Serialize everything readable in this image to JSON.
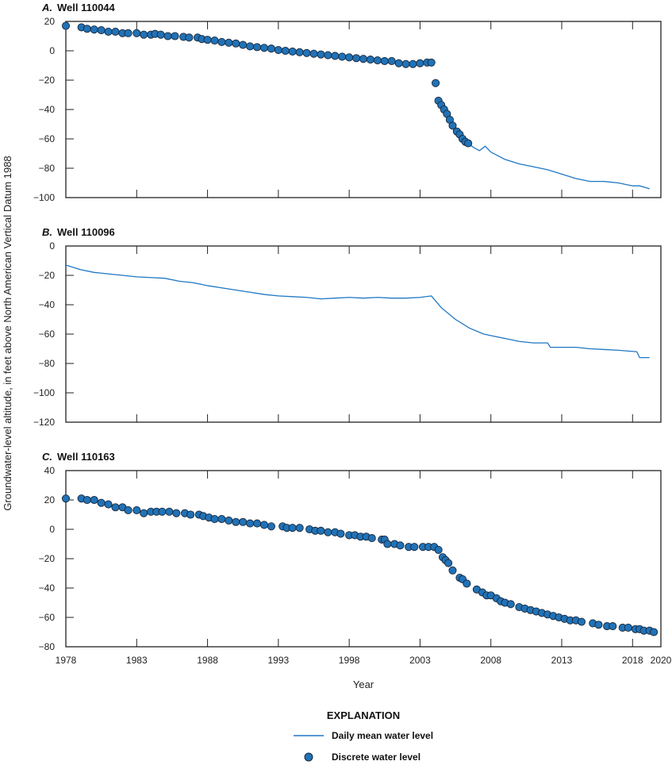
{
  "colors": {
    "line": "#1f77c4",
    "point_fill": "#2172b6",
    "point_stroke": "#17283d"
  },
  "ylabel": "Groundwater-level altitude, in feet above North American Vertical Datum 1988",
  "xlabel": "Year",
  "xlim": [
    1978,
    2020
  ],
  "xticks": [
    1978,
    1983,
    1988,
    1993,
    1998,
    2003,
    2008,
    2013,
    2018,
    2020
  ],
  "legend": {
    "title": "EXPLANATION",
    "line_label": "Daily mean water level",
    "point_label": "Discrete water level"
  },
  "chart_data": [
    {
      "type": "scatter+line",
      "title_letter": "A.",
      "title": "Well 110044",
      "ylim": [
        -100,
        20
      ],
      "yticks": [
        20,
        0,
        -20,
        -40,
        -60,
        -80,
        -100
      ],
      "points": [
        [
          1978,
          17
        ],
        [
          1979.1,
          16
        ],
        [
          1979.5,
          15
        ],
        [
          1980,
          14.5
        ],
        [
          1980.5,
          14
        ],
        [
          1981,
          13
        ],
        [
          1981.5,
          13
        ],
        [
          1982,
          12
        ],
        [
          1982.4,
          12
        ],
        [
          1983,
          12
        ],
        [
          1983.5,
          11
        ],
        [
          1984,
          11
        ],
        [
          1984.3,
          11.5
        ],
        [
          1984.7,
          11
        ],
        [
          1985.2,
          10
        ],
        [
          1985.7,
          10
        ],
        [
          1986.3,
          9.5
        ],
        [
          1986.7,
          9
        ],
        [
          1987.3,
          9
        ],
        [
          1987.6,
          8
        ],
        [
          1988,
          7.5
        ],
        [
          1988.5,
          7
        ],
        [
          1989,
          6
        ],
        [
          1989.5,
          5.5
        ],
        [
          1990,
          5
        ],
        [
          1990.5,
          4
        ],
        [
          1991,
          3
        ],
        [
          1991.5,
          2.5
        ],
        [
          1992,
          2
        ],
        [
          1992.5,
          1.5
        ],
        [
          1993,
          0.5
        ],
        [
          1993.5,
          0
        ],
        [
          1994,
          -0.5
        ],
        [
          1994.5,
          -1
        ],
        [
          1995,
          -1.5
        ],
        [
          1995.5,
          -2
        ],
        [
          1996,
          -2.5
        ],
        [
          1996.5,
          -3
        ],
        [
          1997,
          -3.5
        ],
        [
          1997.5,
          -4
        ],
        [
          1998,
          -4.5
        ],
        [
          1998.5,
          -5
        ],
        [
          1999,
          -5.5
        ],
        [
          1999.5,
          -6
        ],
        [
          2000,
          -6.5
        ],
        [
          2000.5,
          -7
        ],
        [
          2001,
          -7
        ],
        [
          2001.5,
          -8.5
        ],
        [
          2002,
          -9
        ],
        [
          2002.5,
          -9
        ],
        [
          2003,
          -8.5
        ],
        [
          2003.5,
          -8
        ],
        [
          2003.8,
          -8
        ],
        [
          2004.1,
          -22
        ],
        [
          2004.3,
          -34
        ],
        [
          2004.5,
          -37
        ],
        [
          2004.7,
          -40
        ],
        [
          2004.9,
          -43
        ],
        [
          2005.1,
          -47
        ],
        [
          2005.3,
          -51
        ],
        [
          2005.6,
          -55
        ],
        [
          2005.8,
          -57
        ],
        [
          2006,
          -60
        ],
        [
          2006.2,
          -62
        ],
        [
          2006.4,
          -63
        ]
      ],
      "line": [
        [
          2006.4,
          -63
        ],
        [
          2006.8,
          -66
        ],
        [
          2007.2,
          -68
        ],
        [
          2007.6,
          -65
        ],
        [
          2008,
          -69
        ],
        [
          2009,
          -74
        ],
        [
          2010,
          -77
        ],
        [
          2011,
          -79
        ],
        [
          2012,
          -81
        ],
        [
          2013,
          -84
        ],
        [
          2014,
          -87
        ],
        [
          2015,
          -89
        ],
        [
          2016,
          -89
        ],
        [
          2017,
          -90
        ],
        [
          2018,
          -92
        ],
        [
          2018.5,
          -92
        ],
        [
          2019.2,
          -94
        ]
      ]
    },
    {
      "type": "line",
      "title_letter": "B.",
      "title": "Well 110096",
      "ylim": [
        -120,
        0
      ],
      "yticks": [
        0,
        -20,
        -40,
        -60,
        -80,
        -100,
        -120
      ],
      "line": [
        [
          1978,
          -13
        ],
        [
          1979,
          -16
        ],
        [
          1980,
          -18
        ],
        [
          1981,
          -19
        ],
        [
          1983,
          -21
        ],
        [
          1984,
          -21.5
        ],
        [
          1985,
          -22
        ],
        [
          1986,
          -24
        ],
        [
          1987,
          -25
        ],
        [
          1988,
          -27
        ],
        [
          1989,
          -28.5
        ],
        [
          1990,
          -30
        ],
        [
          1991,
          -31.5
        ],
        [
          1992,
          -33
        ],
        [
          1993,
          -34
        ],
        [
          1994,
          -34.5
        ],
        [
          1995,
          -35
        ],
        [
          1996,
          -36
        ],
        [
          1997,
          -35.5
        ],
        [
          1998,
          -35
        ],
        [
          1999,
          -35.5
        ],
        [
          2000,
          -35
        ],
        [
          2001,
          -35.5
        ],
        [
          2002,
          -35.5
        ],
        [
          2003,
          -35
        ],
        [
          2003.8,
          -34
        ],
        [
          2004.5,
          -42
        ],
        [
          2005.5,
          -50
        ],
        [
          2006.5,
          -56
        ],
        [
          2007.5,
          -60
        ],
        [
          2008,
          -61
        ],
        [
          2009,
          -63
        ],
        [
          2010,
          -65
        ],
        [
          2011,
          -66
        ],
        [
          2012,
          -66
        ],
        [
          2012.2,
          -69
        ],
        [
          2013,
          -69
        ],
        [
          2014,
          -69
        ],
        [
          2015,
          -70
        ],
        [
          2016,
          -70.5
        ],
        [
          2017,
          -71
        ],
        [
          2018.3,
          -72
        ],
        [
          2018.5,
          -76
        ],
        [
          2019.2,
          -76
        ]
      ]
    },
    {
      "type": "scatter",
      "title_letter": "C.",
      "title": "Well 110163",
      "ylim": [
        -80,
        40
      ],
      "yticks": [
        40,
        20,
        0,
        -20,
        -40,
        -60,
        -80
      ],
      "points": [
        [
          1978,
          21
        ],
        [
          1979.1,
          21
        ],
        [
          1979.5,
          20
        ],
        [
          1980,
          20
        ],
        [
          1980.5,
          18
        ],
        [
          1981,
          17
        ],
        [
          1981.5,
          15
        ],
        [
          1982,
          15
        ],
        [
          1982.4,
          13
        ],
        [
          1983,
          13
        ],
        [
          1983.5,
          11
        ],
        [
          1984,
          12
        ],
        [
          1984.4,
          12
        ],
        [
          1984.8,
          12
        ],
        [
          1985.3,
          12
        ],
        [
          1985.8,
          11
        ],
        [
          1986.4,
          11
        ],
        [
          1986.8,
          10
        ],
        [
          1987.4,
          10
        ],
        [
          1987.7,
          9
        ],
        [
          1988.1,
          8
        ],
        [
          1988.5,
          7
        ],
        [
          1989,
          7
        ],
        [
          1989.5,
          6
        ],
        [
          1990,
          5
        ],
        [
          1990.5,
          5
        ],
        [
          1991,
          4
        ],
        [
          1991.5,
          4
        ],
        [
          1992,
          3
        ],
        [
          1992.5,
          2
        ],
        [
          1993.3,
          2
        ],
        [
          1993.6,
          1
        ],
        [
          1994,
          1
        ],
        [
          1994.5,
          1
        ],
        [
          1995.2,
          0
        ],
        [
          1995.6,
          -1
        ],
        [
          1996,
          -1
        ],
        [
          1996.5,
          -2
        ],
        [
          1997,
          -2
        ],
        [
          1997.4,
          -3
        ],
        [
          1998,
          -4
        ],
        [
          1998.4,
          -4
        ],
        [
          1998.8,
          -5
        ],
        [
          1999.2,
          -5
        ],
        [
          1999.6,
          -6
        ],
        [
          2000.3,
          -7
        ],
        [
          2000.5,
          -7
        ],
        [
          2000.7,
          -10
        ],
        [
          2001.2,
          -10
        ],
        [
          2001.6,
          -11
        ],
        [
          2002.2,
          -12
        ],
        [
          2002.6,
          -12
        ],
        [
          2003.2,
          -12
        ],
        [
          2003.6,
          -12
        ],
        [
          2004,
          -12
        ],
        [
          2004.3,
          -14
        ],
        [
          2004.6,
          -19
        ],
        [
          2004.8,
          -21
        ],
        [
          2005,
          -23
        ],
        [
          2005.3,
          -28
        ],
        [
          2005.8,
          -33
        ],
        [
          2006,
          -34
        ],
        [
          2006.3,
          -37
        ],
        [
          2007,
          -41
        ],
        [
          2007.4,
          -43
        ],
        [
          2007.7,
          -45
        ],
        [
          2008,
          -45
        ],
        [
          2008.4,
          -47
        ],
        [
          2008.7,
          -49
        ],
        [
          2009,
          -50
        ],
        [
          2009.4,
          -51
        ],
        [
          2010,
          -53
        ],
        [
          2010.4,
          -54
        ],
        [
          2010.8,
          -55
        ],
        [
          2011.2,
          -56
        ],
        [
          2011.6,
          -57
        ],
        [
          2012,
          -58
        ],
        [
          2012.4,
          -59
        ],
        [
          2012.8,
          -60
        ],
        [
          2013.2,
          -61
        ],
        [
          2013.6,
          -62
        ],
        [
          2014,
          -62
        ],
        [
          2014.4,
          -63
        ],
        [
          2015.2,
          -64
        ],
        [
          2015.6,
          -65
        ],
        [
          2016.2,
          -66
        ],
        [
          2016.6,
          -66
        ],
        [
          2017.3,
          -67
        ],
        [
          2017.7,
          -67
        ],
        [
          2018.2,
          -68
        ],
        [
          2018.5,
          -68
        ],
        [
          2018.8,
          -69
        ],
        [
          2019.2,
          -69
        ],
        [
          2019.5,
          -70
        ]
      ]
    }
  ]
}
